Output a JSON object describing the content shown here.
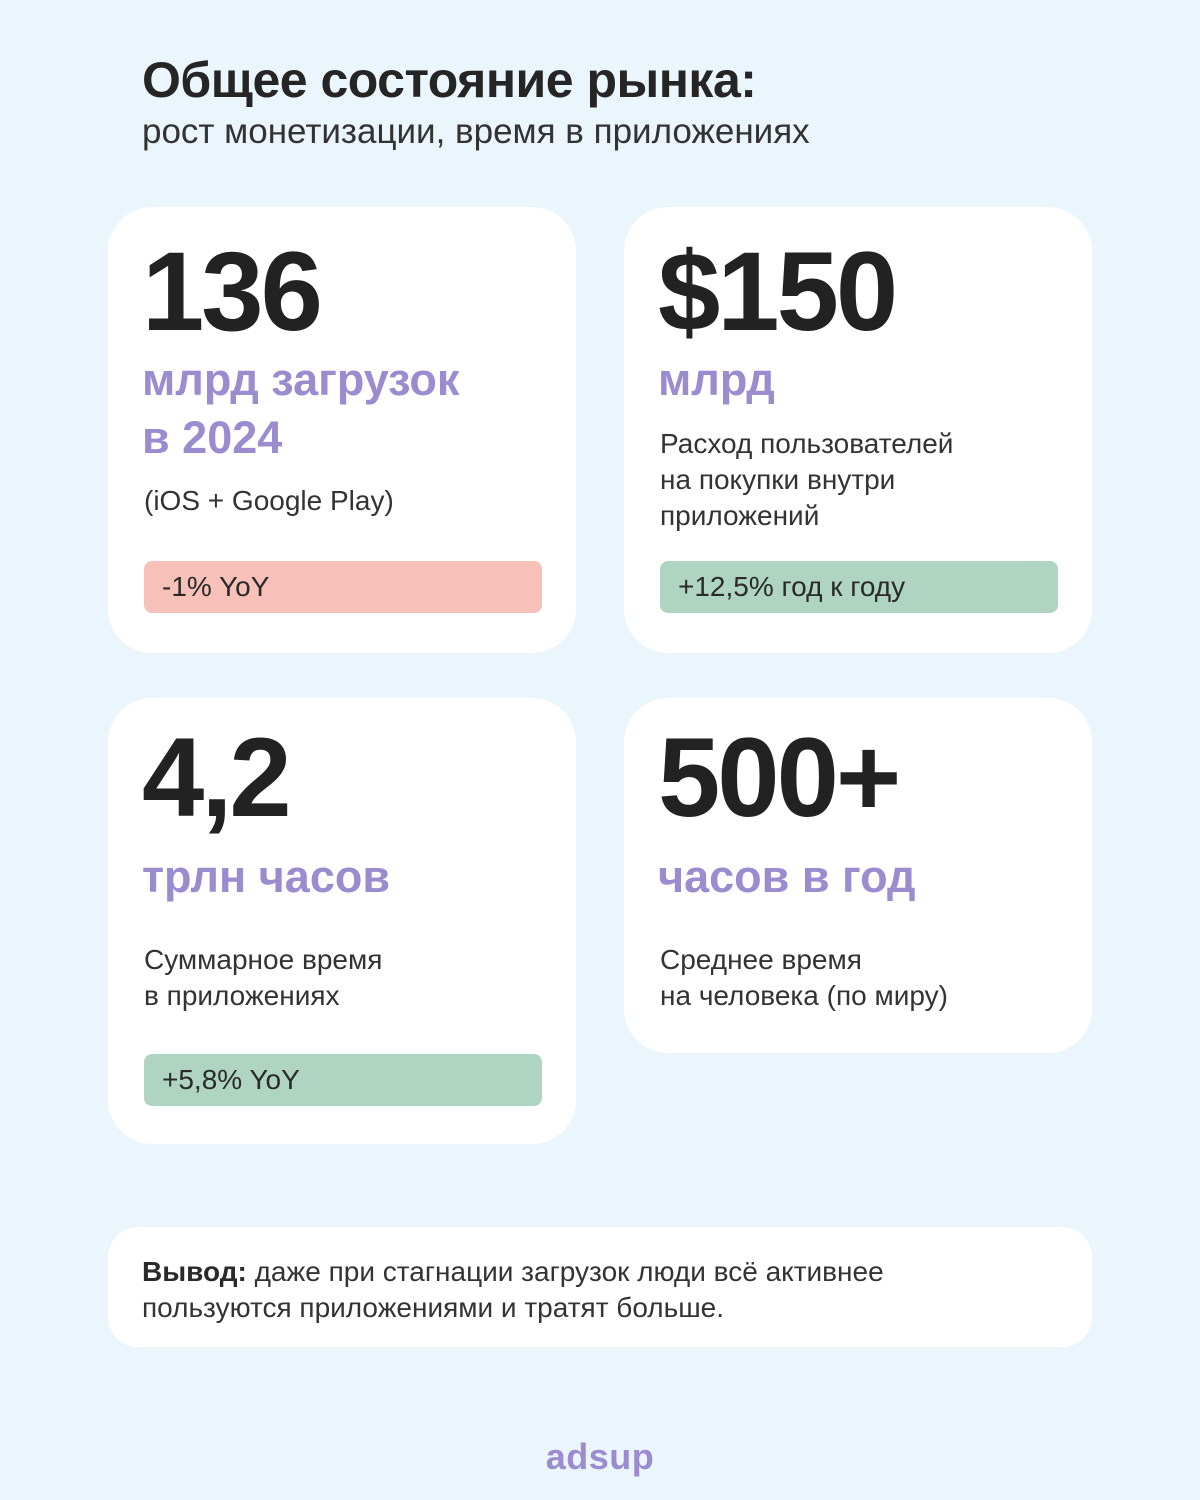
{
  "header": {
    "title": "Общее состояние рынка:",
    "subtitle": "рост монетизации, время в приложениях"
  },
  "cards": [
    {
      "number": "136",
      "label_line1": "млрд загрузок",
      "label_line2": "в 2024",
      "desc": "(iOS + Google Play)",
      "badge": "-1% YoY",
      "badge_status": "negative"
    },
    {
      "number": "$150",
      "label_line1": "млрд",
      "desc_line1": "Расход пользователей",
      "desc_line2": "на покупки внутри",
      "desc_line3": "приложений",
      "badge": "+12,5% год к году",
      "badge_status": "positive"
    },
    {
      "number": "4,2",
      "label_line1": "трлн часов",
      "desc_line1": "Суммарное время",
      "desc_line2": "в приложениях",
      "badge": "+5,8% YoY",
      "badge_status": "positive"
    },
    {
      "number": "500+",
      "label_line1": "часов в год",
      "desc_line1": "Среднее время",
      "desc_line2": "на человека (по миру)"
    }
  ],
  "conclusion": {
    "lead": "Вывод:",
    "line1_rest": " даже при стагнации загрузок люди всё активнее",
    "line2": "пользуются приложениями и тратят больше."
  },
  "logo": "adsup",
  "colors": {
    "background": "#eaf6fc",
    "accent": "#9b8bcf",
    "badge_negative": "#f7c1ba",
    "badge_positive": "#afd5c2"
  }
}
